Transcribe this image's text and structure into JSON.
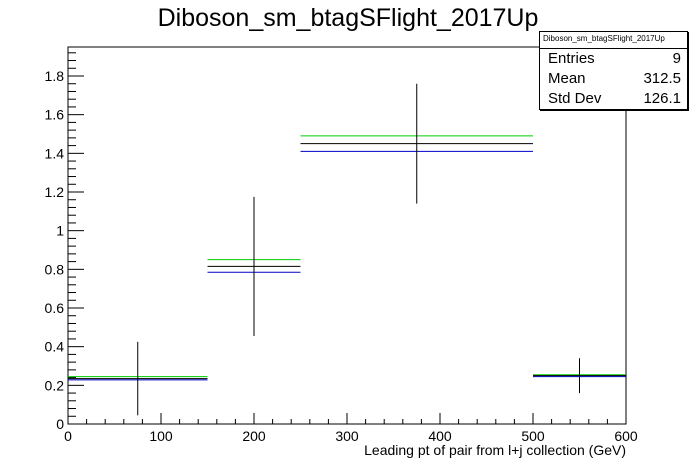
{
  "title": "Diboson_sm_btagSFlight_2017Up",
  "stats": {
    "name": "Diboson_sm_btagSFlight_2017Up",
    "rows": [
      {
        "label": "Entries",
        "value": "9"
      },
      {
        "label": "Mean",
        "value": "312.5"
      },
      {
        "label": "Std Dev",
        "value": "126.1"
      }
    ]
  },
  "chart_data": {
    "type": "line",
    "xlabel": "Leading pt of pair from l+j collection (GeV)",
    "ylabel": "",
    "xlim": [
      0,
      600
    ],
    "ylim": [
      0,
      1.95
    ],
    "x_ticks": [
      0,
      100,
      200,
      300,
      400,
      500,
      600
    ],
    "y_ticks": [
      0,
      0.2,
      0.4,
      0.6,
      0.8,
      1,
      1.2,
      1.4,
      1.6,
      1.8
    ],
    "bins": [
      [
        0,
        150
      ],
      [
        150,
        250
      ],
      [
        250,
        500
      ],
      [
        500,
        600
      ]
    ],
    "series": [
      {
        "color": "#000000",
        "values": [
          0.235,
          0.815,
          1.45,
          0.25
        ],
        "errors": [
          0.19,
          0.36,
          0.31,
          0.09
        ]
      },
      {
        "color": "#00cc00",
        "values": [
          0.245,
          0.85,
          1.49,
          0.255
        ]
      },
      {
        "color": "#0000cc",
        "values": [
          0.228,
          0.785,
          1.41,
          0.245
        ]
      }
    ]
  }
}
